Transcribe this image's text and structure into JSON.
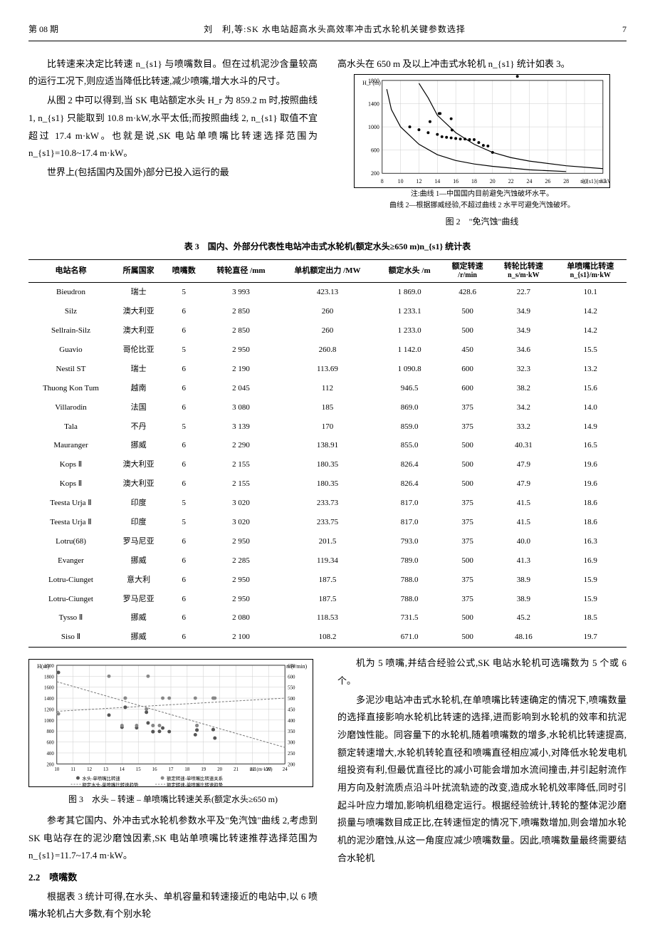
{
  "header": {
    "issue": "第 08 期",
    "title": "刘　利,等:SK 水电站超高水头高效率冲击式水轮机关键参数选择",
    "pageno": "7"
  },
  "left_top_paras": [
    "比转速来决定比转速 n_{s1} 与喷嘴数目。但在过机泥沙含量较高的运行工况下,则应适当降低比转速,减少喷嘴,增大水斗的尺寸。",
    "从图 2 中可以得到,当 SK 电站额定水头 H_r 为 859.2 m 时,按照曲线 1, n_{s1} 只能取到 10.8 m·kW,水平太低;而按照曲线 2, n_{s1} 取值不宜超过 17.4 m·kW。也就是说,SK 电站单喷嘴比转速选择范围为 n_{s1}=10.8~17.4 m·kW。",
    "世界上(包括国内及国外)部分已投入运行的最"
  ],
  "right_top_line": "高水头在 650 m 及以上冲击式水轮机 n_{s1} 统计如表 3。",
  "fig2": {
    "note1": "注:曲线 1—中国国内目前避免汽蚀破坏水平。",
    "note2": "曲线 2—根据挪威经验,不超过曲线 2 水平可避免汽蚀破坏。",
    "caption": "图 2　\"免汽蚀\"曲线",
    "xlabel": "n_{s1}(m·kW)",
    "ylabel": "H_r (m)",
    "xlim": [
      8,
      32
    ],
    "xtick_step": 2,
    "ylim": [
      200,
      1800
    ],
    "ytick_step": 400,
    "grid_color": "#cccccc",
    "curve_color": "#000000",
    "point_color": "#000000",
    "curves": [
      [
        [
          8.5,
          1650
        ],
        [
          9,
          1300
        ],
        [
          10,
          1000
        ],
        [
          12,
          700
        ],
        [
          14,
          520
        ],
        [
          16,
          420
        ],
        [
          18,
          360
        ],
        [
          20,
          320
        ],
        [
          24,
          260
        ],
        [
          28,
          230
        ]
      ],
      [
        [
          12,
          1750
        ],
        [
          13,
          1500
        ],
        [
          14,
          1200
        ],
        [
          16,
          900
        ],
        [
          18,
          700
        ],
        [
          20,
          560
        ],
        [
          22,
          470
        ],
        [
          24,
          410
        ],
        [
          28,
          330
        ],
        [
          32,
          280
        ]
      ]
    ],
    "points": [
      [
        11,
        1000
      ],
      [
        12,
        950
      ],
      [
        13,
        900
      ],
      [
        14,
        870
      ],
      [
        14.5,
        830
      ],
      [
        15,
        820
      ],
      [
        15.5,
        810
      ],
      [
        16,
        800
      ],
      [
        16.5,
        790
      ],
      [
        17,
        790
      ],
      [
        17.5,
        780
      ],
      [
        18,
        780
      ],
      [
        18.5,
        730
      ],
      [
        19,
        680
      ],
      [
        19.5,
        670
      ],
      [
        20,
        560
      ],
      [
        13.2,
        1090
      ],
      [
        14.2,
        1230
      ],
      [
        14.3,
        1230
      ],
      [
        15.5,
        1140
      ],
      [
        22.7,
        1870
      ],
      [
        15.6,
        945
      ]
    ]
  },
  "table3": {
    "caption": "表 3　国内、外部分代表性电站冲击式水轮机(额定水头≥650 m)n_{s1} 统计表",
    "columns": [
      {
        "h1": "电站名称",
        "h2": ""
      },
      {
        "h1": "所属国家",
        "h2": ""
      },
      {
        "h1": "喷嘴数",
        "h2": ""
      },
      {
        "h1": "转轮直径 /mm",
        "h2": ""
      },
      {
        "h1": "单机额定出力 /MW",
        "h2": ""
      },
      {
        "h1": "额定水头 /m",
        "h2": ""
      },
      {
        "h1": "额定转速",
        "h2": "/r/min"
      },
      {
        "h1": "转轮比转速",
        "h2": "n_s/m·kW"
      },
      {
        "h1": "单喷嘴比转速",
        "h2": "n_{s1}/m·kW"
      }
    ],
    "rows": [
      [
        "Bieudron",
        "瑞士",
        "5",
        "3 993",
        "423.13",
        "1 869.0",
        "428.6",
        "22.7",
        "10.1"
      ],
      [
        "Silz",
        "澳大利亚",
        "6",
        "2 850",
        "260",
        "1 233.1",
        "500",
        "34.9",
        "14.2"
      ],
      [
        "Sellrain-Silz",
        "澳大利亚",
        "6",
        "2 850",
        "260",
        "1 233.0",
        "500",
        "34.9",
        "14.2"
      ],
      [
        "Guavio",
        "哥伦比亚",
        "5",
        "2 950",
        "260.8",
        "1 142.0",
        "450",
        "34.6",
        "15.5"
      ],
      [
        "Nestil ST",
        "瑞士",
        "6",
        "2 190",
        "113.69",
        "1 090.8",
        "600",
        "32.3",
        "13.2"
      ],
      [
        "Thuong Kon Tum",
        "越南",
        "6",
        "2 045",
        "112",
        "946.5",
        "600",
        "38.2",
        "15.6"
      ],
      [
        "Villarodin",
        "法国",
        "6",
        "3 080",
        "185",
        "869.0",
        "375",
        "34.2",
        "14.0"
      ],
      [
        "Tala",
        "不丹",
        "5",
        "3 139",
        "170",
        "859.0",
        "375",
        "33.2",
        "14.9"
      ],
      [
        "Mauranger",
        "挪威",
        "6",
        "2 290",
        "138.91",
        "855.0",
        "500",
        "40.31",
        "16.5"
      ],
      [
        "Kops Ⅱ",
        "澳大利亚",
        "6",
        "2 155",
        "180.35",
        "826.4",
        "500",
        "47.9",
        "19.6"
      ],
      [
        "Kops Ⅱ",
        "澳大利亚",
        "6",
        "2 155",
        "180.35",
        "826.4",
        "500",
        "47.9",
        "19.6"
      ],
      [
        "Teesta Urja Ⅱ",
        "印度",
        "5",
        "3 020",
        "233.73",
        "817.0",
        "375",
        "41.5",
        "18.6"
      ],
      [
        "Teesta Urja Ⅱ",
        "印度",
        "5",
        "3 020",
        "233.75",
        "817.0",
        "375",
        "41.5",
        "18.6"
      ],
      [
        "Lotru(68)",
        "罗马尼亚",
        "6",
        "2 950",
        "201.5",
        "793.0",
        "375",
        "40.0",
        "16.3"
      ],
      [
        "Evanger",
        "挪威",
        "6",
        "2 285",
        "119.34",
        "789.0",
        "500",
        "41.3",
        "16.9"
      ],
      [
        "Lotru-Ciunget",
        "意大利",
        "6",
        "2 950",
        "187.5",
        "788.0",
        "375",
        "38.9",
        "15.9"
      ],
      [
        "Lotru-Ciunget",
        "罗马尼亚",
        "6",
        "2 950",
        "187.5",
        "788.0",
        "375",
        "38.9",
        "15.9"
      ],
      [
        "Tysso Ⅱ",
        "挪威",
        "6",
        "2 080",
        "118.53",
        "731.5",
        "500",
        "45.2",
        "18.5"
      ],
      [
        "Siso Ⅱ",
        "挪威",
        "6",
        "2 100",
        "108.2",
        "671.0",
        "500",
        "48.16",
        "19.7"
      ]
    ]
  },
  "fig3": {
    "caption": "图 3　水头 – 转速 – 单喷嘴比转速关系(额定水头≥650 m)",
    "xlabel": "ns1(m·kW)",
    "ylabel_left": "H(m)",
    "ylabel_right": "nr(r/min)",
    "xlim": [
      10,
      24
    ],
    "xtick_step": 1,
    "ylim_left": [
      200,
      2000
    ],
    "ytick_left_step": 200,
    "ylim_right": [
      200,
      650
    ],
    "ytick_right_step": 50,
    "grid_color": "#cccccc",
    "series1_color": "#555555",
    "series2_color": "#888888",
    "trend_color": "#777777",
    "legend": [
      "水头-单喷嘴比转速",
      "额定转速-单喷嘴比转速关系",
      "额定水头-单喷嘴比转速趋势",
      "额定转速-单喷嘴比转速趋势"
    ],
    "points_head": [
      [
        10.1,
        1869
      ],
      [
        14.2,
        1233
      ],
      [
        14.2,
        1233
      ],
      [
        15.5,
        1142
      ],
      [
        13.2,
        1091
      ],
      [
        15.6,
        947
      ],
      [
        14.0,
        869
      ],
      [
        14.9,
        859
      ],
      [
        16.5,
        855
      ],
      [
        19.6,
        826
      ],
      [
        19.6,
        826
      ],
      [
        18.6,
        817
      ],
      [
        18.6,
        817
      ],
      [
        16.3,
        793
      ],
      [
        16.9,
        789
      ],
      [
        15.9,
        788
      ],
      [
        15.9,
        788
      ],
      [
        18.5,
        732
      ],
      [
        19.7,
        671
      ]
    ],
    "points_speed": [
      [
        10.1,
        428.6
      ],
      [
        14.2,
        500
      ],
      [
        14.2,
        500
      ],
      [
        15.5,
        450
      ],
      [
        13.2,
        600
      ],
      [
        15.6,
        600
      ],
      [
        14.0,
        375
      ],
      [
        14.9,
        375
      ],
      [
        16.5,
        500
      ],
      [
        19.6,
        500
      ],
      [
        19.6,
        500
      ],
      [
        18.6,
        375
      ],
      [
        18.6,
        375
      ],
      [
        16.3,
        375
      ],
      [
        16.9,
        500
      ],
      [
        15.9,
        375
      ],
      [
        15.9,
        375
      ],
      [
        18.5,
        500
      ],
      [
        19.7,
        500
      ]
    ],
    "trend_head": [
      [
        10,
        1700
      ],
      [
        24,
        500
      ]
    ],
    "trend_speed": [
      [
        10,
        440
      ],
      [
        24,
        500
      ]
    ]
  },
  "bottom_left_paras": [
    "参考其它国内、外冲击式水轮机参数水平及\"免汽蚀\"曲线 2,考虑到 SK 电站存在的泥沙磨蚀因素,SK 电站单喷嘴比转速推荐选择范围为 n_{s1}=11.7~17.4 m·kW。"
  ],
  "section_2_2": "2.2　喷嘴数",
  "bottom_left_paras2": [
    "根据表 3 统计可得,在水头、单机容量和转速接近的电站中,以 6 喷嘴水轮机占大多数,有个别水轮"
  ],
  "bottom_right_paras": [
    "机为 5 喷嘴,并结合经验公式,SK 电站水轮机可选嘴数为 5 个或 6 个。",
    "多泥沙电站冲击式水轮机,在单喷嘴比转速确定的情况下,喷嘴数量的选择直接影响水轮机比转速的选择,进而影响到水轮机的效率和抗泥沙磨蚀性能。同容量下的水轮机,随着喷嘴数的增多,水轮机比转速提高,额定转速增大,水轮机转轮直径和喷嘴直径相应减小,对降低水轮发电机组投资有利,但最优直径比的减小可能会增加水流间撞击,并引起射流作用方向及射流质点沿斗叶扰流轨迹的改变,造成水轮机效率降低,同时引起斗叶应力增加,影响机组稳定运行。根据经验统计,转轮的整体泥沙磨损量与喷嘴数目成正比,在转速恒定的情况下,喷嘴数增加,则会增加水轮机的泥沙磨蚀,从这一角度应减少喷嘴数量。因此,喷嘴数量最终需要结合水轮机"
  ]
}
